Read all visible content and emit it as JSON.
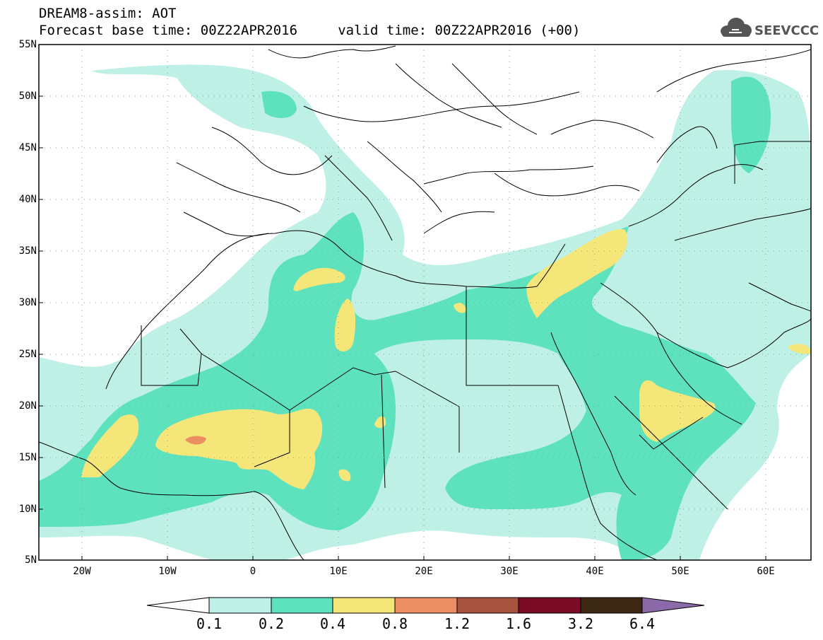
{
  "header": {
    "title_line1": "DREAM8-assim: AOT",
    "title_line2": "Forecast base time: 00Z22APR2016     valid time: 00Z22APR2016 (+00)"
  },
  "logo": {
    "text": "SEEVCCC",
    "icon": "cloud-icon"
  },
  "map": {
    "lat_labels": [
      "55N",
      "50N",
      "45N",
      "40N",
      "35N",
      "30N",
      "25N",
      "20N",
      "15N",
      "10N",
      "5N"
    ],
    "lon_labels": [
      "20W",
      "10W",
      "0",
      "10E",
      "20E",
      "30E",
      "40E",
      "50E",
      "60E"
    ]
  },
  "colorbar": {
    "labels": [
      "0.1",
      "0.2",
      "0.4",
      "0.8",
      "1.2",
      "1.6",
      "3.2",
      "6.4"
    ],
    "colors": [
      "#ffffff",
      "#bff0e6",
      "#5ee2bd",
      "#f5e67a",
      "#e98f63",
      "#a6523f",
      "#7a0c28",
      "#3d2816",
      "#8a6aa8"
    ]
  }
}
